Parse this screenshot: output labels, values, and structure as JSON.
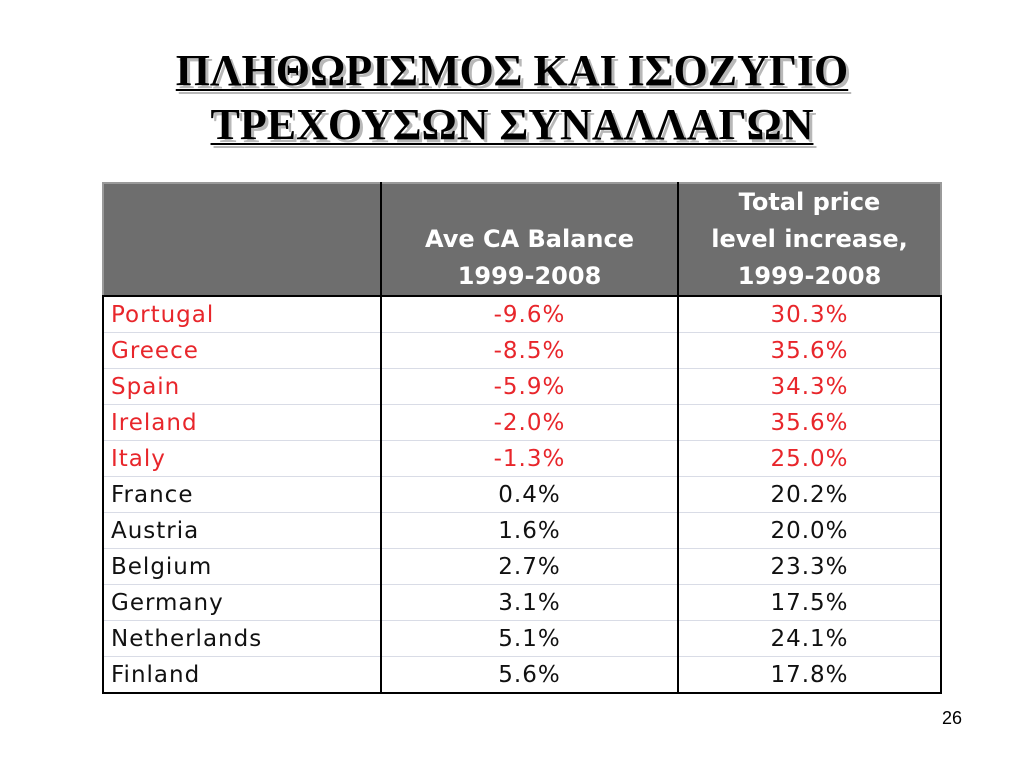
{
  "slide": {
    "title_line1": "ΠΛΗΘΩΡΙΣΜΟΣ ΚΑΙ ΙΣΟΖΥΓΙΟ",
    "title_line2": "ΤΡΕΧΟΥΣΩΝ ΣΥΝΑΛΛΑΓΩΝ",
    "page_number": "26"
  },
  "table": {
    "headers": {
      "country": "",
      "ca_balance_line1": "Ave CA Balance",
      "ca_balance_line2": "1999-2008",
      "price_line1": "Total price",
      "price_line2": "level increase,",
      "price_line3": "1999-2008"
    },
    "colors": {
      "header_bg": "#6e6e6e",
      "deficit_text": "#e8262b",
      "surplus_text": "#111111"
    },
    "rows": [
      {
        "country": "Portugal",
        "ca_balance": "-9.6%",
        "price_increase": "30.3%"
      },
      {
        "country": "Greece",
        "ca_balance": "-8.5%",
        "price_increase": "35.6%"
      },
      {
        "country": "Spain",
        "ca_balance": "-5.9%",
        "price_increase": "34.3%"
      },
      {
        "country": "Ireland",
        "ca_balance": "-2.0%",
        "price_increase": "35.6%"
      },
      {
        "country": "Italy",
        "ca_balance": "-1.3%",
        "price_increase": "25.0%"
      },
      {
        "country": "France",
        "ca_balance": "0.4%",
        "price_increase": "20.2%"
      },
      {
        "country": "Austria",
        "ca_balance": "1.6%",
        "price_increase": "20.0%"
      },
      {
        "country": "Belgium",
        "ca_balance": "2.7%",
        "price_increase": "23.3%"
      },
      {
        "country": "Germany",
        "ca_balance": "3.1%",
        "price_increase": "17.5%"
      },
      {
        "country": "Netherlands",
        "ca_balance": "5.1%",
        "price_increase": "24.1%"
      },
      {
        "country": "Finland",
        "ca_balance": "5.6%",
        "price_increase": "17.8%"
      }
    ]
  }
}
